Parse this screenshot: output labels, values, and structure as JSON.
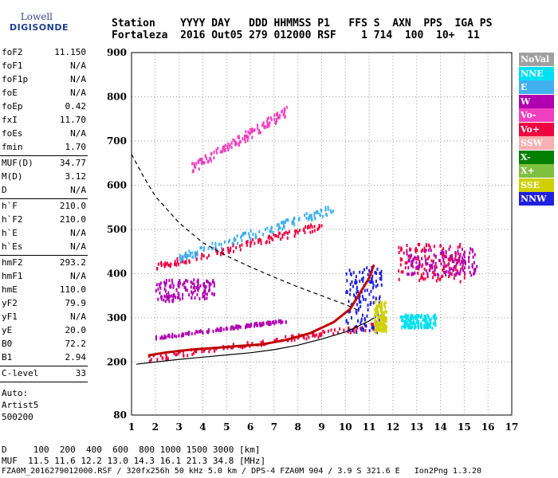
{
  "logo": {
    "line1": "Lowell",
    "line2": "DIGISONDE"
  },
  "header": {
    "row1": "Station    YYYY DAY   DDD HHMMSS P1   FFS S  AXN  PPS  IGA PS",
    "row2": "Fortaleza  2016 Out05 279 012000 RSF    1 714  100  10+  11"
  },
  "params_group1": [
    {
      "key": "foF2",
      "value": "11.150"
    },
    {
      "key": "foF1",
      "value": "N/A"
    },
    {
      "key": "foF1p",
      "value": "N/A"
    },
    {
      "key": "foE",
      "value": "N/A"
    },
    {
      "key": "foEp",
      "value": "0.42"
    },
    {
      "key": "fxI",
      "value": "11.70"
    },
    {
      "key": "foEs",
      "value": "N/A"
    },
    {
      "key": "fmin",
      "value": "1.70"
    }
  ],
  "params_group2": [
    {
      "key": "MUF(D)",
      "value": "34.77"
    },
    {
      "key": "M(D)",
      "value": "3.12"
    },
    {
      "key": "D",
      "value": "N/A"
    }
  ],
  "params_group3": [
    {
      "key": "h`F",
      "value": "210.0"
    },
    {
      "key": "h`F2",
      "value": "210.0"
    },
    {
      "key": "h`E",
      "value": "N/A"
    },
    {
      "key": "h`Es",
      "value": "N/A"
    }
  ],
  "params_group4": [
    {
      "key": "hmF2",
      "value": "293.2"
    },
    {
      "key": "hmF1",
      "value": "N/A"
    },
    {
      "key": "hmE",
      "value": "110.0"
    },
    {
      "key": "yF2",
      "value": "79.9"
    },
    {
      "key": "yF1",
      "value": "N/A"
    },
    {
      "key": "yE",
      "value": "20.0"
    },
    {
      "key": "B0",
      "value": "72.2"
    },
    {
      "key": "B1",
      "value": "2.94"
    }
  ],
  "params_group5": [
    {
      "key": "C-level",
      "value": "33"
    }
  ],
  "auto": {
    "l1": "Auto:",
    "l2": "Artist5",
    "l3": "500200"
  },
  "legend": [
    {
      "label": "NoVal",
      "color": "#a0a0a0"
    },
    {
      "label": "NNE",
      "color": "#00e0f0"
    },
    {
      "label": "E",
      "color": "#40b0f0"
    },
    {
      "label": "W",
      "color": "#b000b0"
    },
    {
      "label": "Vo-",
      "color": "#f040c0"
    },
    {
      "label": "Vo+",
      "color": "#f00040"
    },
    {
      "label": "SSW",
      "color": "#f8b0b0"
    },
    {
      "label": "X-",
      "color": "#008000"
    },
    {
      "label": "X+",
      "color": "#80c040"
    },
    {
      "label": "SSE",
      "color": "#d0d000"
    },
    {
      "label": "NNW",
      "color": "#2020e0"
    }
  ],
  "footer": {
    "row1": "D     100  200  400  600  800 1000 1500 3000 [km]",
    "row2": "MUF  11.5 11.6 12.2 13.0 14.3 16.1 21.3 34.8 [MHz]",
    "row3": "FZA0M_2016279012000.RSF / 320fx256h 50 kHz 5.0 km / DPS-4 FZA0M 904 / 3.9 S 321.6 E   Ion2Png 1.3.20"
  },
  "chart_data": {
    "type": "scatter",
    "xlim": [
      1,
      17
    ],
    "ylim": [
      80,
      900
    ],
    "x_ticks": [
      1,
      2,
      3,
      4,
      5,
      6,
      7,
      8,
      9,
      10,
      11,
      12,
      13,
      14,
      15,
      16,
      17
    ],
    "y_ticks": [
      80,
      200,
      300,
      400,
      500,
      600,
      700,
      800,
      900
    ],
    "grid": "dotted",
    "ordinary_trace": {
      "x": [
        1.7,
        2.5,
        3.5,
        4.5,
        5.5,
        6.5,
        7.5,
        8.5,
        9.5,
        10.2,
        10.6,
        11.0,
        11.2
      ],
      "y": [
        215,
        222,
        228,
        232,
        236,
        240,
        250,
        265,
        290,
        320,
        355,
        390,
        420
      ]
    },
    "true_height_profile": {
      "x": [
        1.2,
        2.0,
        3.0,
        4.0,
        5.0,
        6.0,
        7.0,
        8.0,
        9.0,
        10.0,
        10.5,
        11.0,
        11.2
      ],
      "y": [
        195,
        200,
        206,
        211,
        216,
        221,
        228,
        238,
        252,
        268,
        280,
        293,
        300
      ]
    },
    "muf_curve": {
      "x": [
        1.0,
        1.5,
        2.0,
        3.0,
        4.0,
        5.0,
        6.0,
        7.0,
        8.0,
        9.0,
        10.0,
        10.5
      ],
      "y": [
        670,
        620,
        575,
        515,
        470,
        440,
        415,
        392,
        370,
        350,
        330,
        318
      ]
    },
    "echo_clusters": [
      {
        "name": "F-trace",
        "x": [
          1.7,
          11.2
        ],
        "y": [
          205,
          290
        ],
        "color": "#f00040"
      },
      {
        "name": "F-trace",
        "x": [
          2.0,
          7.5
        ],
        "y": [
          255,
          300
        ],
        "color": "#b000b0"
      },
      {
        "name": "2F",
        "x": [
          2.0,
          9.0
        ],
        "y": [
          410,
          520
        ],
        "color": "#f00040"
      },
      {
        "name": "2F",
        "x": [
          3.0,
          9.5
        ],
        "y": [
          430,
          560
        ],
        "color": "#40b0f0"
      },
      {
        "name": "3F",
        "x": [
          3.5,
          7.5
        ],
        "y": [
          630,
          780
        ],
        "color": "#f040c0"
      },
      {
        "name": "spread",
        "x": [
          2.0,
          4.5
        ],
        "y": [
          340,
          390
        ],
        "color": "#b000b0"
      },
      {
        "name": "spread",
        "x": [
          10.0,
          11.5
        ],
        "y": [
          270,
          420
        ],
        "color": "#2020e0"
      },
      {
        "name": "spread",
        "x": [
          11.2,
          11.7
        ],
        "y": [
          270,
          340
        ],
        "color": "#d0d000"
      },
      {
        "name": "oblique",
        "x": [
          12.2,
          15.0
        ],
        "y": [
          385,
          470
        ],
        "color": "#f00040"
      },
      {
        "name": "oblique",
        "x": [
          12.5,
          15.5
        ],
        "y": [
          400,
          460
        ],
        "color": "#b000b0"
      },
      {
        "name": "scatter",
        "x": [
          12.3,
          13.8
        ],
        "y": [
          280,
          310
        ],
        "color": "#00e0f0"
      }
    ]
  }
}
